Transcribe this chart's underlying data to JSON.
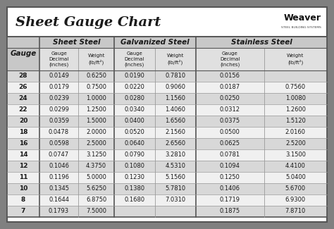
{
  "title": "Sheet Gauge Chart",
  "gauges": [
    28,
    26,
    24,
    22,
    20,
    18,
    16,
    14,
    12,
    11,
    10,
    8,
    7
  ],
  "sheet_steel": {
    "decimal": [
      "0.0149",
      "0.0179",
      "0.0239",
      "0.0299",
      "0.0359",
      "0.0478",
      "0.0598",
      "0.0747",
      "0.1046",
      "0.1196",
      "0.1345",
      "0.1644",
      "0.1793"
    ],
    "weight": [
      "0.6250",
      "0.7500",
      "1.0000",
      "1.2500",
      "1.5000",
      "2.0000",
      "2.5000",
      "3.1250",
      "4.3750",
      "5.0000",
      "5.6250",
      "6.8750",
      "7.5000"
    ]
  },
  "galvanized_steel": {
    "decimal": [
      "0.0190",
      "0.0220",
      "0.0280",
      "0.0340",
      "0.0400",
      "0.0520",
      "0.0640",
      "0.0790",
      "0.1080",
      "0.1230",
      "0.1380",
      "0.1680",
      ""
    ],
    "weight": [
      "0.7810",
      "0.9060",
      "1.1560",
      "1.4060",
      "1.6560",
      "2.1560",
      "2.6560",
      "3.2810",
      "4.5310",
      "5.1560",
      "5.7810",
      "7.0310",
      ""
    ]
  },
  "stainless_steel": {
    "decimal": [
      "0.0156",
      "0.0187",
      "0.0250",
      "0.0312",
      "0.0375",
      "0.0500",
      "0.0625",
      "0.0781",
      "0.1094",
      "0.1250",
      "0.1406",
      "0.1719",
      "0.1875"
    ],
    "weight": [
      "",
      "0.7560",
      "1.0080",
      "1.2600",
      "1.5120",
      "2.0160",
      "2.5200",
      "3.1500",
      "4.4100",
      "5.0400",
      "5.6700",
      "6.9300",
      "7.8710"
    ]
  },
  "outer_bg": "#808080",
  "title_area_bg": "#ffffff",
  "table_bg": "#ffffff",
  "header_sec_bg": "#c8c8c8",
  "header_sub_bg": "#e0e0e0",
  "row_gray": "#d8d8d8",
  "row_white": "#f0f0f0",
  "border_dark": "#555555",
  "border_light": "#999999",
  "text_color": "#1a1a1a"
}
